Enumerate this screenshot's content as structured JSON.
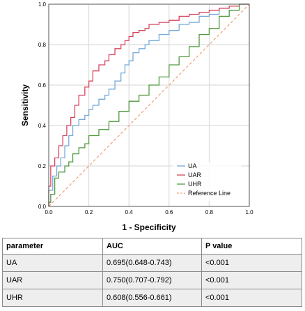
{
  "chart_data": {
    "type": "line",
    "xlabel": "1 - Specificity",
    "ylabel": "Sensitivity",
    "xlim": [
      0,
      1
    ],
    "ylim": [
      0,
      1
    ],
    "xticks": [
      "0.0",
      "0.2",
      "0.4",
      "0.6",
      "0.8",
      "1.0"
    ],
    "yticks": [
      "0.0",
      "0.2",
      "0.4",
      "0.6",
      "0.8",
      "1.0"
    ],
    "grid": true,
    "legend_position": "bottom-right",
    "series": [
      {
        "name": "UA",
        "color": "#74a9d8",
        "x": [
          0,
          0.02,
          0.04,
          0.06,
          0.08,
          0.1,
          0.12,
          0.15,
          0.18,
          0.2,
          0.22,
          0.25,
          0.28,
          0.3,
          0.33,
          0.36,
          0.38,
          0.4,
          0.42,
          0.45,
          0.48,
          0.5,
          0.55,
          0.6,
          0.65,
          0.7,
          0.75,
          0.8,
          0.85,
          0.9,
          0.95,
          1.0
        ],
        "y": [
          0,
          0.08,
          0.15,
          0.2,
          0.24,
          0.3,
          0.35,
          0.4,
          0.43,
          0.45,
          0.48,
          0.5,
          0.53,
          0.55,
          0.58,
          0.62,
          0.66,
          0.7,
          0.72,
          0.76,
          0.78,
          0.8,
          0.82,
          0.85,
          0.87,
          0.9,
          0.91,
          0.94,
          0.95,
          0.98,
          0.99,
          1.0
        ]
      },
      {
        "name": "UAR",
        "color": "#d9455f",
        "x": [
          0,
          0.01,
          0.03,
          0.05,
          0.07,
          0.09,
          0.11,
          0.13,
          0.15,
          0.18,
          0.2,
          0.22,
          0.25,
          0.28,
          0.3,
          0.33,
          0.36,
          0.38,
          0.4,
          0.42,
          0.45,
          0.48,
          0.5,
          0.55,
          0.6,
          0.65,
          0.7,
          0.75,
          0.8,
          0.85,
          0.9,
          0.95,
          1.0
        ],
        "y": [
          0,
          0.1,
          0.2,
          0.24,
          0.3,
          0.35,
          0.4,
          0.44,
          0.5,
          0.55,
          0.59,
          0.62,
          0.67,
          0.7,
          0.72,
          0.75,
          0.78,
          0.8,
          0.82,
          0.84,
          0.86,
          0.87,
          0.88,
          0.9,
          0.91,
          0.92,
          0.94,
          0.95,
          0.96,
          0.97,
          0.98,
          0.99,
          1.0
        ]
      },
      {
        "name": "UHR",
        "color": "#4f9a3e",
        "x": [
          0,
          0.01,
          0.03,
          0.05,
          0.08,
          0.1,
          0.12,
          0.15,
          0.18,
          0.2,
          0.25,
          0.3,
          0.35,
          0.4,
          0.45,
          0.5,
          0.55,
          0.6,
          0.65,
          0.7,
          0.75,
          0.8,
          0.85,
          0.9,
          0.95,
          1.0
        ],
        "y": [
          0,
          0.02,
          0.06,
          0.14,
          0.17,
          0.2,
          0.22,
          0.26,
          0.29,
          0.31,
          0.35,
          0.38,
          0.42,
          0.47,
          0.52,
          0.55,
          0.6,
          0.64,
          0.7,
          0.74,
          0.79,
          0.85,
          0.88,
          0.94,
          0.97,
          1.0
        ]
      },
      {
        "name": "Reference Line",
        "color": "#f0a57a",
        "dashed": true,
        "x": [
          0,
          1
        ],
        "y": [
          0,
          1
        ]
      }
    ]
  },
  "table": {
    "headers": [
      "parameter",
      "AUC",
      "P value"
    ],
    "rows": [
      [
        "UA",
        "0.695(0.648-0.743)",
        "<0.001"
      ],
      [
        "UAR",
        "0.750(0.707-0.792)",
        "<0.001"
      ],
      [
        "UHR",
        "0.608(0.556-0.661)",
        "<0.001"
      ]
    ]
  }
}
